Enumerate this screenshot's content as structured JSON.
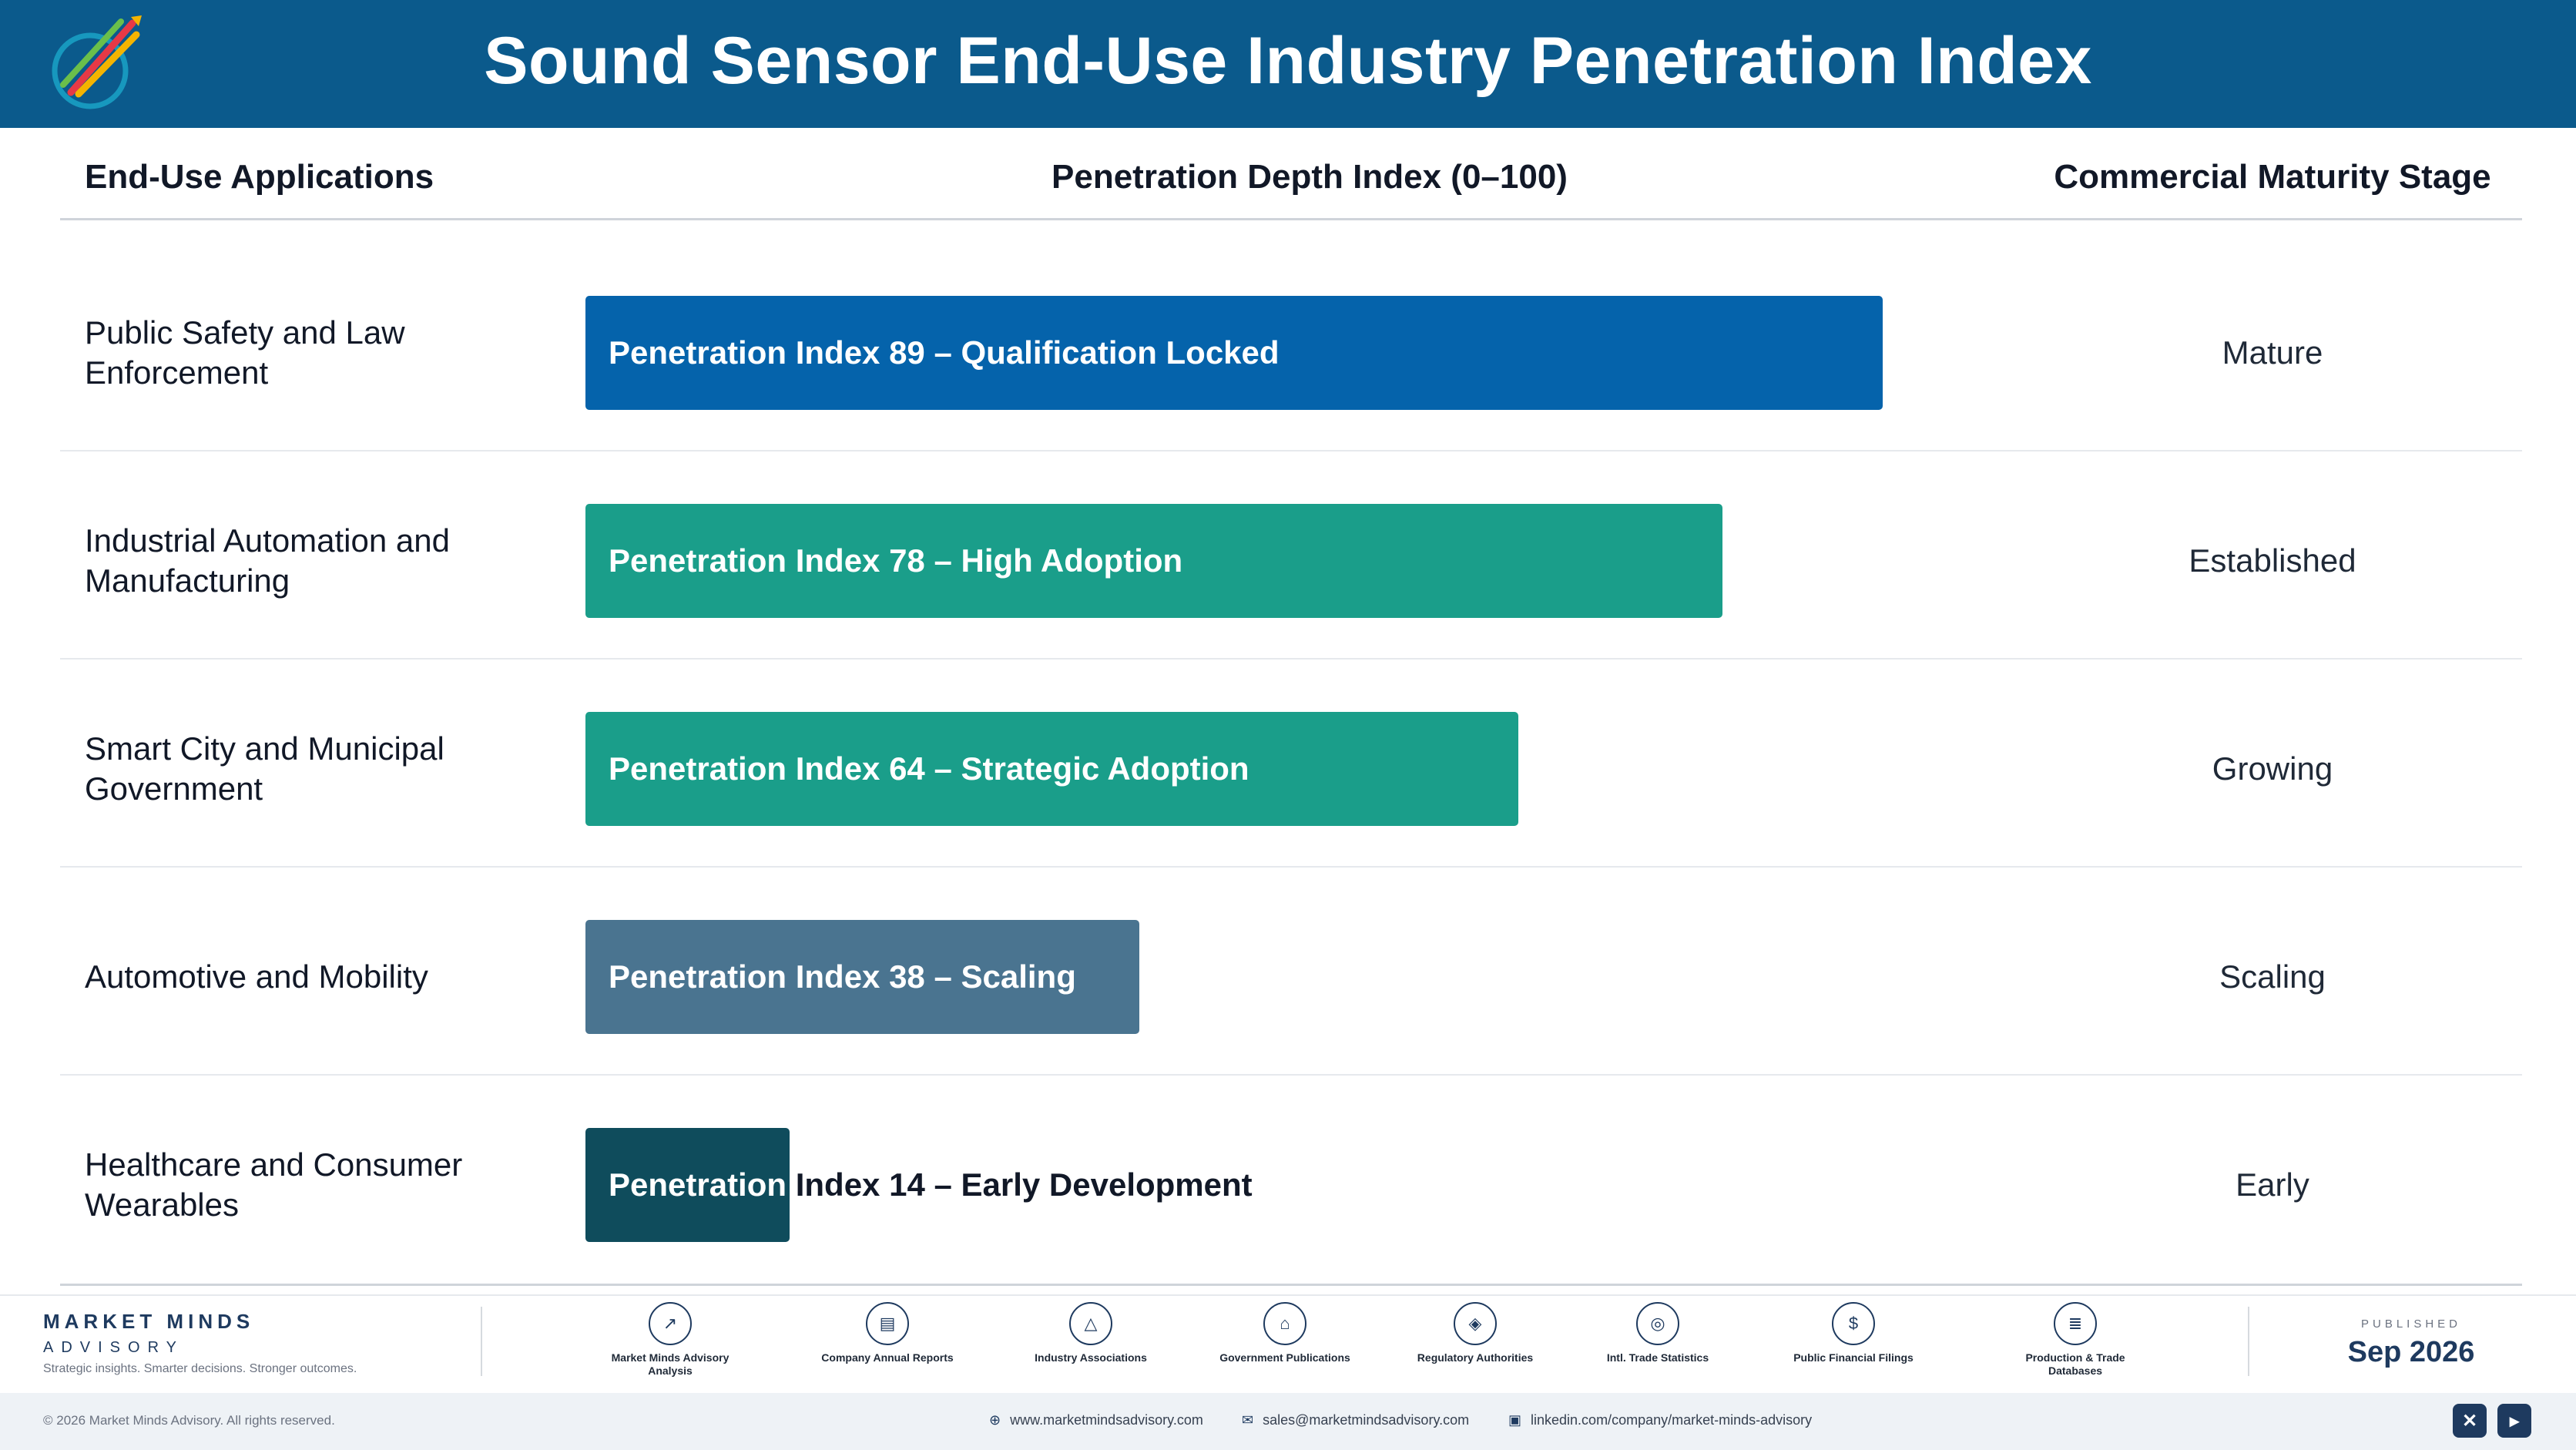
{
  "header": {
    "title": "Sound Sensor End-Use Industry Penetration Index"
  },
  "columns": {
    "applications": "End-Use Applications",
    "index": "Penetration Depth Index (0–100)",
    "stage": "Commercial Maturity Stage"
  },
  "chart_data": {
    "type": "bar",
    "orientation": "horizontal",
    "title": "Sound Sensor End-Use Industry Penetration Index",
    "xlabel": "Penetration Depth Index (0–100)",
    "xlim": [
      0,
      100
    ],
    "categories": [
      "Public Safety and Law Enforcement",
      "Industrial Automation and Manufacturing",
      "Smart City and Municipal Government",
      "Automotive and Mobility",
      "Healthcare and Consumer Wearables"
    ],
    "values": [
      89,
      78,
      64,
      38,
      14
    ],
    "bar_labels": [
      "Penetration Index 89 – Qualification Locked",
      "Penetration Index 78 – High Adoption",
      "Penetration Index 64 – Strategic Adoption",
      "Penetration Index 38 – Scaling",
      "Penetration Index 14 – Early Development"
    ],
    "stages": [
      "Mature",
      "Established",
      "Growing",
      "Scaling",
      "Early"
    ],
    "colors": [
      "#0563ab",
      "#1a9e8a",
      "#1a9e8a",
      "#4a7490",
      "#0f4c5c"
    ]
  },
  "footer": {
    "brand_name": "MARKET MINDS",
    "brand_sub": "ADVISORY",
    "tagline": "Strategic insights. Smarter decisions. Stronger outcomes.",
    "sources": [
      {
        "icon": "chart-line-icon",
        "glyph": "↗",
        "label": "Market Minds Advisory Analysis"
      },
      {
        "icon": "document-icon",
        "glyph": "▤",
        "label": "Company Annual Reports"
      },
      {
        "icon": "network-icon",
        "glyph": "△",
        "label": "Industry Associations"
      },
      {
        "icon": "government-building-icon",
        "glyph": "⌂",
        "label": "Government Publications"
      },
      {
        "icon": "shield-icon",
        "glyph": "◈",
        "label": "Regulatory Authorities"
      },
      {
        "icon": "globe-icon",
        "glyph": "◎",
        "label": "Intl. Trade Statistics"
      },
      {
        "icon": "coin-icon",
        "glyph": "$",
        "label": "Public Financial Filings"
      },
      {
        "icon": "database-icon",
        "glyph": "≣",
        "label": "Production & Trade Databases"
      }
    ],
    "published_label": "PUBLISHED",
    "published_date": "Sep 2026",
    "copyright": "© 2026 Market Minds Advisory. All rights reserved.",
    "website": "www.marketmindsadvisory.com",
    "email": "sales@marketmindsadvisory.com",
    "linkedin": "linkedin.com/company/market-minds-advisory"
  },
  "colors": {
    "header_bg": "#0b5a8c",
    "brand": "#1e3a5f"
  }
}
